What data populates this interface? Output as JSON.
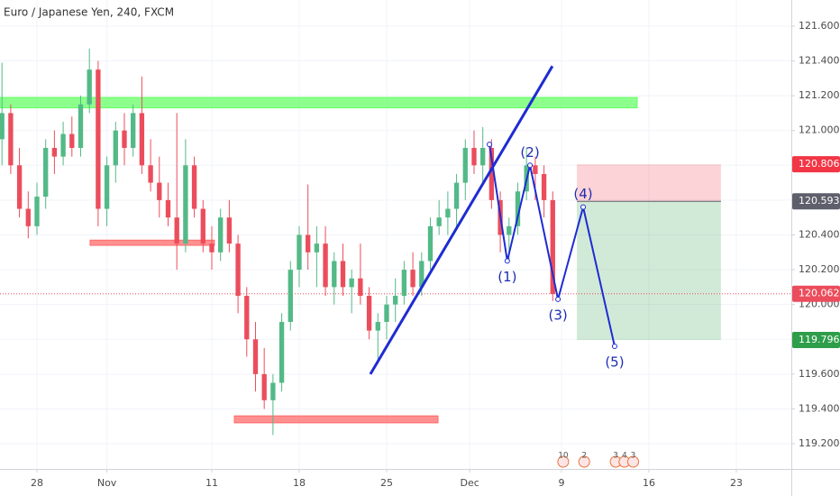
{
  "chart_data": {
    "type": "candlestick",
    "title": "Euro / Japanese Yen, 240, FXCM",
    "up_color": "#53b987",
    "down_color": "#eb4d5c",
    "xlim": [
      -2.113,
      43.146
    ],
    "ylim": [
      119.055,
      121.75
    ],
    "xticks": [
      {
        "value": 0,
        "label": "28"
      },
      {
        "value": 4,
        "label": "Nov"
      },
      {
        "value": 10,
        "label": "11"
      },
      {
        "value": 15,
        "label": "18"
      },
      {
        "value": 20,
        "label": "25"
      },
      {
        "value": 24.75,
        "label": "Dec"
      },
      {
        "value": 30,
        "label": "9"
      },
      {
        "value": 35,
        "label": "16"
      },
      {
        "value": 40,
        "label": "23"
      }
    ],
    "yticks": [
      {
        "value": 119.2,
        "label": "119.200"
      },
      {
        "value": 119.4,
        "label": "119.400"
      },
      {
        "value": 119.6,
        "label": "119.600"
      },
      {
        "value": 119.8,
        "label": "119.800"
      },
      {
        "value": 120,
        "label": "120.000"
      },
      {
        "value": 120.2,
        "label": "120.200"
      },
      {
        "value": 120.4,
        "label": "120.400"
      },
      {
        "value": 120.6,
        "label": "120.600"
      },
      {
        "value": 120.8,
        "label": "120.800"
      },
      {
        "value": 121,
        "label": "121.000"
      },
      {
        "value": 121.2,
        "label": "121.200"
      },
      {
        "value": 121.4,
        "label": "121.400"
      },
      {
        "value": 121.6,
        "label": "121.600"
      }
    ],
    "x": [
      -2,
      -1.5,
      -1,
      -0.5,
      0,
      0.5,
      1,
      1.5,
      2,
      2.5,
      3,
      3.5,
      4,
      4.5,
      5,
      5.5,
      6,
      6.5,
      7,
      7.5,
      8,
      8.5,
      9,
      9.5,
      10,
      10.5,
      11,
      11.5,
      12,
      12.5,
      13,
      13.5,
      14,
      14.5,
      15,
      15.5,
      16,
      16.5,
      17,
      17.5,
      18,
      18.5,
      19,
      19.5,
      20,
      20.5,
      21,
      21.5,
      22,
      22.5,
      23,
      23.5,
      24,
      24.5,
      25,
      25.5,
      26,
      26.5,
      27,
      27.5,
      28,
      28.5,
      29,
      29.5
    ],
    "open": [
      120.95,
      121.1,
      120.8,
      120.55,
      120.45,
      120.62,
      120.9,
      120.85,
      120.98,
      120.9,
      121.15,
      121.35,
      120.55,
      120.8,
      121.0,
      120.9,
      121.1,
      120.8,
      120.7,
      120.6,
      120.5,
      120.35,
      120.8,
      120.55,
      120.35,
      120.3,
      120.5,
      120.35,
      120.05,
      119.8,
      119.6,
      119.45,
      119.55,
      119.9,
      120.2,
      120.4,
      120.3,
      120.35,
      120.1,
      120.25,
      120.1,
      120.15,
      120.05,
      119.85,
      119.9,
      120.0,
      120.05,
      120.2,
      120.1,
      120.25,
      120.45,
      120.5,
      120.55,
      120.7,
      120.9,
      120.8,
      120.9,
      120.6,
      120.4,
      120.45,
      120.65,
      120.8,
      120.75,
      120.6
    ],
    "high": [
      121.39,
      121.15,
      120.9,
      120.65,
      120.7,
      120.95,
      121.0,
      121.05,
      121.08,
      121.2,
      121.47,
      121.4,
      120.85,
      121.05,
      121.1,
      121.15,
      121.31,
      120.95,
      120.85,
      120.7,
      121.1,
      120.95,
      120.85,
      120.6,
      120.45,
      120.55,
      120.6,
      120.4,
      120.1,
      119.9,
      119.75,
      119.6,
      119.95,
      120.25,
      120.45,
      120.69,
      120.45,
      120.45,
      120.3,
      120.35,
      120.2,
      120.35,
      120.1,
      119.95,
      120.05,
      120.15,
      120.25,
      120.3,
      120.3,
      120.5,
      120.6,
      120.65,
      120.75,
      120.95,
      121.0,
      121.02,
      120.95,
      120.65,
      120.5,
      120.7,
      120.9,
      120.85,
      120.8,
      120.65
    ],
    "low": [
      120.8,
      120.75,
      120.5,
      120.38,
      120.4,
      120.55,
      120.75,
      120.8,
      120.85,
      120.85,
      121.1,
      120.45,
      120.45,
      120.7,
      120.8,
      120.85,
      120.75,
      120.65,
      120.5,
      120.45,
      120.2,
      120.3,
      120.5,
      120.3,
      120.2,
      120.25,
      120.3,
      119.95,
      119.7,
      119.5,
      119.4,
      119.25,
      119.5,
      119.85,
      120.1,
      120.2,
      120.1,
      120.05,
      120.0,
      120.05,
      119.95,
      120.0,
      119.8,
      119.66,
      119.8,
      119.9,
      120.0,
      120.05,
      120.05,
      120.2,
      120.4,
      120.4,
      120.45,
      120.6,
      120.75,
      120.7,
      120.55,
      120.3,
      120.25,
      120.4,
      120.6,
      120.6,
      120.5,
      120.02
    ],
    "close": [
      121.1,
      120.8,
      120.55,
      120.45,
      120.62,
      120.9,
      120.85,
      120.98,
      120.9,
      121.15,
      121.35,
      120.55,
      120.8,
      121.0,
      120.9,
      121.1,
      120.8,
      120.7,
      120.6,
      120.5,
      120.35,
      120.8,
      120.55,
      120.35,
      120.3,
      120.5,
      120.35,
      120.05,
      119.8,
      119.6,
      119.45,
      119.55,
      119.9,
      120.2,
      120.4,
      120.3,
      120.35,
      120.1,
      120.25,
      120.1,
      120.15,
      120.05,
      119.85,
      119.9,
      120.0,
      120.05,
      120.2,
      120.1,
      120.25,
      120.45,
      120.5,
      120.55,
      120.7,
      120.9,
      120.8,
      120.9,
      120.6,
      120.4,
      120.45,
      120.65,
      120.8,
      120.75,
      120.6,
      120.06
    ],
    "zones": [
      {
        "x": [
          -2.113,
          34.33
        ],
        "y": [
          121.13,
          121.19
        ],
        "color": "#66ff66"
      },
      {
        "x": [
          3.04,
          10.15
        ],
        "y": [
          120.34,
          120.37
        ],
        "color": "#ff6b6b"
      },
      {
        "x": [
          11.29,
          22.94
        ],
        "y": [
          119.32,
          119.36
        ],
        "color": "#ff6b6b"
      }
    ],
    "trendline": {
      "x": [
        19.07,
        29.48
      ],
      "y": [
        119.6,
        121.37
      ],
      "color": "#1e2cd2"
    },
    "wave": {
      "x": [
        25.88,
        26.9,
        28.2,
        29.8,
        31.24,
        33.04
      ],
      "y": [
        120.92,
        120.25,
        120.8,
        120.03,
        120.56,
        119.76
      ],
      "labels": [
        null,
        "(1)",
        "(2)",
        "(3)",
        "(4)",
        "(5)"
      ],
      "color": "#1e2cd2"
    },
    "position": {
      "x": [
        30.88,
        39.12
      ],
      "entry": 120.593,
      "stop": 120.806,
      "target": 119.796,
      "profit_color": "#2e9e4a",
      "loss_color": "#f23645",
      "entry_color": "#5d606b"
    },
    "last_price": 120.062,
    "events": [
      {
        "x": 30.1,
        "label": "10"
      },
      {
        "x": 31.3,
        "label": "2"
      },
      {
        "x": 33.1,
        "label": "3"
      },
      {
        "x": 33.6,
        "label": "4"
      },
      {
        "x": 34.1,
        "label": "3"
      }
    ]
  }
}
